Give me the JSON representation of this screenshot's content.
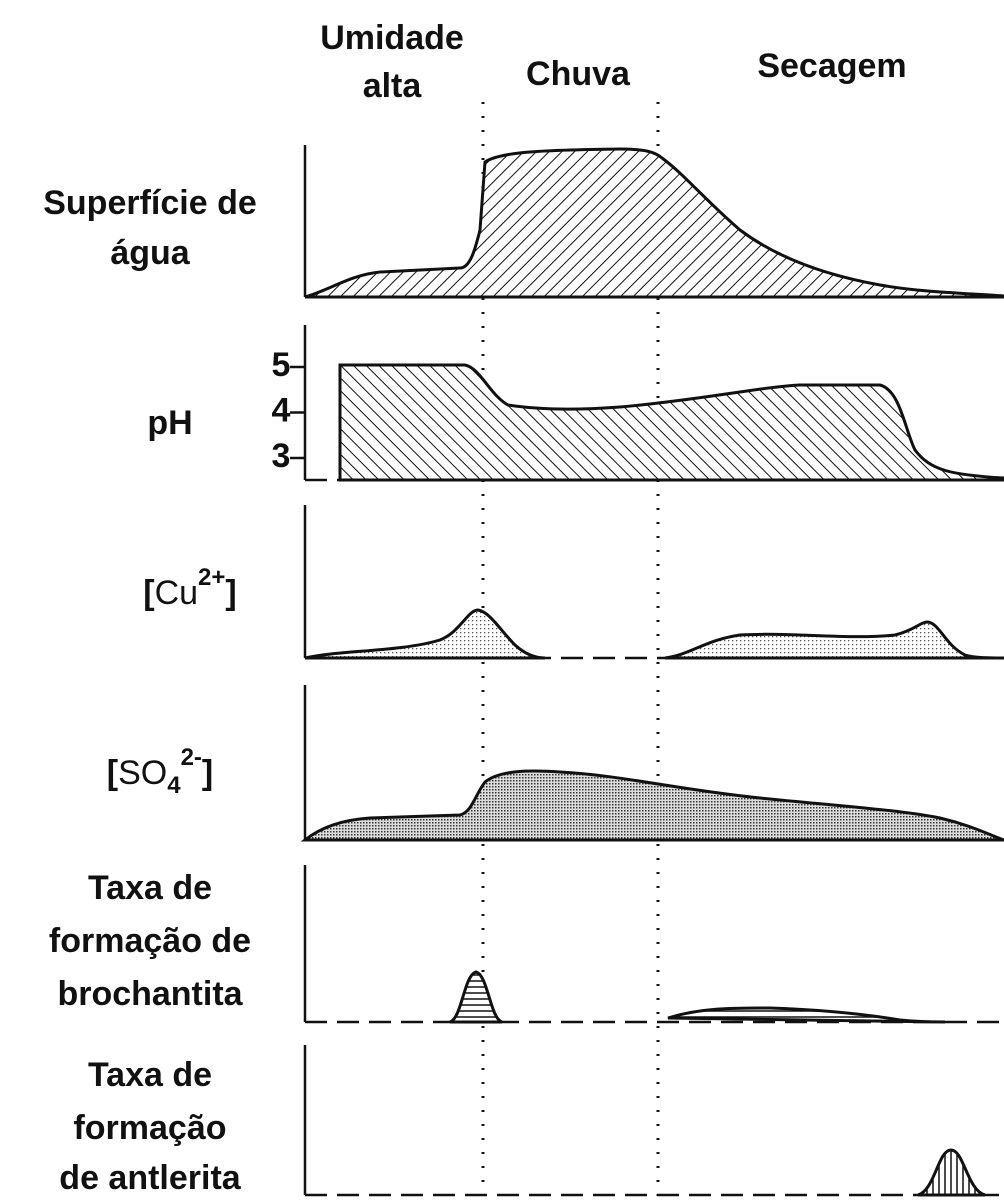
{
  "header": {
    "phases": [
      {
        "lines": [
          "Umidade",
          "alta"
        ]
      },
      {
        "lines": [
          "Chuva"
        ]
      },
      {
        "lines": [
          "Secagem"
        ]
      }
    ]
  },
  "rows": [
    {
      "lines": [
        "Superfície de",
        "água"
      ]
    },
    {
      "lines": [
        "pH"
      ],
      "ticks": [
        5,
        4,
        3
      ]
    },
    {
      "label": {
        "open": "[",
        "base": "Cu",
        "sup": "2+",
        "close": "]"
      }
    },
    {
      "label": {
        "open": "[",
        "base": "SO",
        "sub": "4",
        "sup": "2-",
        "close": "]"
      }
    },
    {
      "lines": [
        "Taxa de",
        "formação de",
        "brochantita"
      ]
    },
    {
      "lines": [
        "Taxa de",
        "formação",
        "de antlerita"
      ]
    }
  ]
}
